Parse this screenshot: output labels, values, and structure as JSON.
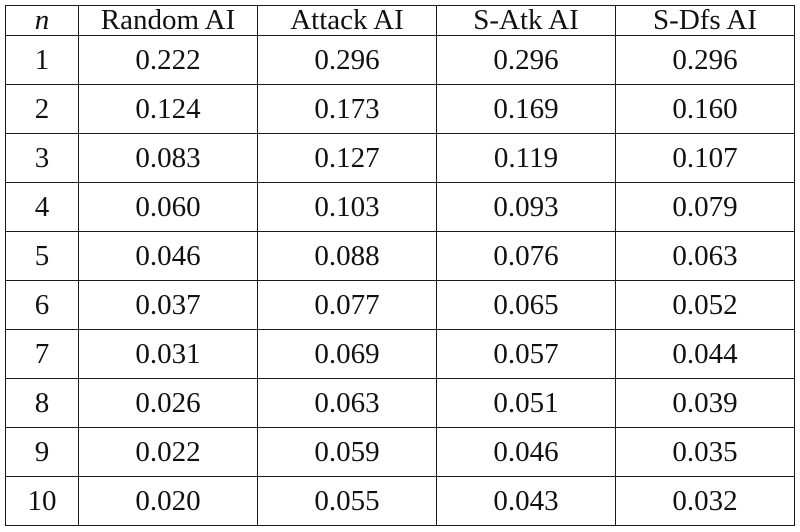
{
  "chart_data": {
    "type": "table",
    "columns": [
      "n",
      "Random AI",
      "Attack AI",
      "S-Atk AI",
      "S-Dfs AI"
    ],
    "rows": [
      [
        "1",
        "0.222",
        "0.296",
        "0.296",
        "0.296"
      ],
      [
        "2",
        "0.124",
        "0.173",
        "0.169",
        "0.160"
      ],
      [
        "3",
        "0.083",
        "0.127",
        "0.119",
        "0.107"
      ],
      [
        "4",
        "0.060",
        "0.103",
        "0.093",
        "0.079"
      ],
      [
        "5",
        "0.046",
        "0.088",
        "0.076",
        "0.063"
      ],
      [
        "6",
        "0.037",
        "0.077",
        "0.065",
        "0.052"
      ],
      [
        "7",
        "0.031",
        "0.069",
        "0.057",
        "0.044"
      ],
      [
        "8",
        "0.026",
        "0.063",
        "0.051",
        "0.039"
      ],
      [
        "9",
        "0.022",
        "0.059",
        "0.046",
        "0.035"
      ],
      [
        "10",
        "0.020",
        "0.055",
        "0.043",
        "0.032"
      ]
    ]
  }
}
